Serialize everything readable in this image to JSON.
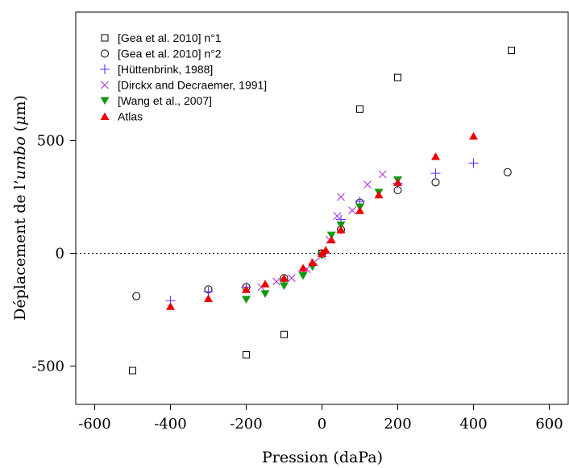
{
  "chart_data": {
    "type": "scatter",
    "xlabel": "Pression (daPa)",
    "ylabel_prefix": "Déplacement de l’",
    "ylabel_italic": "umbo",
    "ylabel_unit_open": " (",
    "ylabel_unit_greek": "μ",
    "ylabel_unit_rest": "m)",
    "xlim": [
      -650,
      650
    ],
    "ylim": [
      -670,
      1070
    ],
    "xticks": [
      -600,
      -400,
      -200,
      0,
      200,
      400,
      600
    ],
    "xtick_labels": [
      "-600",
      "-400",
      "-200",
      "0",
      "200",
      "400",
      "600"
    ],
    "yticks": [
      -500,
      0,
      500
    ],
    "ytick_labels": [
      "-500",
      "0",
      "500"
    ],
    "reference_line_y": 0,
    "legend_position": "top-left",
    "series": [
      {
        "name": "[Gea et al. 2010] n°1",
        "marker": "square-open",
        "color": "#000000",
        "points": [
          [
            -500,
            -520
          ],
          [
            -200,
            -450
          ],
          [
            -100,
            -360
          ],
          [
            0,
            0
          ],
          [
            100,
            640
          ],
          [
            200,
            780
          ],
          [
            500,
            900
          ]
        ]
      },
      {
        "name": "[Gea et al. 2010] n°2",
        "marker": "circle-open",
        "color": "#000000",
        "points": [
          [
            -490,
            -190
          ],
          [
            -300,
            -160
          ],
          [
            -200,
            -150
          ],
          [
            -100,
            -110
          ],
          [
            0,
            0
          ],
          [
            50,
            105
          ],
          [
            100,
            225
          ],
          [
            200,
            280
          ],
          [
            300,
            315
          ],
          [
            490,
            360
          ]
        ]
      },
      {
        "name": "[Hüttenbrink, 1988]",
        "marker": "plus",
        "color": "#6633ff",
        "points": [
          [
            -400,
            -210
          ],
          [
            -300,
            -170
          ],
          [
            -200,
            -150
          ],
          [
            -100,
            -120
          ],
          [
            -50,
            -80
          ],
          [
            0,
            -5
          ],
          [
            50,
            150
          ],
          [
            100,
            230
          ],
          [
            200,
            310
          ],
          [
            300,
            355
          ],
          [
            400,
            400
          ]
        ]
      },
      {
        "name": "[Dirckx and Decraemer, 1991]",
        "marker": "cross",
        "color": "#aa33dd",
        "points": [
          [
            -160,
            -150
          ],
          [
            -120,
            -125
          ],
          [
            -80,
            -110
          ],
          [
            -40,
            -70
          ],
          [
            -20,
            -40
          ],
          [
            0,
            -10
          ],
          [
            20,
            60
          ],
          [
            40,
            165
          ],
          [
            50,
            250
          ],
          [
            80,
            190
          ],
          [
            120,
            305
          ],
          [
            160,
            350
          ],
          [
            200,
            320
          ]
        ]
      },
      {
        "name": "[Wang et al., 2007]",
        "marker": "triangle-down",
        "color": "#119911",
        "points": [
          [
            -200,
            -205
          ],
          [
            -150,
            -180
          ],
          [
            -100,
            -145
          ],
          [
            -50,
            -100
          ],
          [
            -25,
            -60
          ],
          [
            0,
            -10
          ],
          [
            25,
            80
          ],
          [
            50,
            125
          ],
          [
            100,
            205
          ],
          [
            150,
            270
          ],
          [
            200,
            325
          ]
        ]
      },
      {
        "name": "Atlas",
        "marker": "triangle-up",
        "color": "#ee0000",
        "points": [
          [
            -400,
            -235
          ],
          [
            -300,
            -200
          ],
          [
            -200,
            -160
          ],
          [
            -150,
            -135
          ],
          [
            -100,
            -110
          ],
          [
            -50,
            -65
          ],
          [
            -25,
            -40
          ],
          [
            0,
            0
          ],
          [
            10,
            15
          ],
          [
            25,
            60
          ],
          [
            50,
            105
          ],
          [
            100,
            190
          ],
          [
            150,
            260
          ],
          [
            200,
            315
          ],
          [
            300,
            430
          ],
          [
            400,
            520
          ]
        ]
      }
    ]
  }
}
